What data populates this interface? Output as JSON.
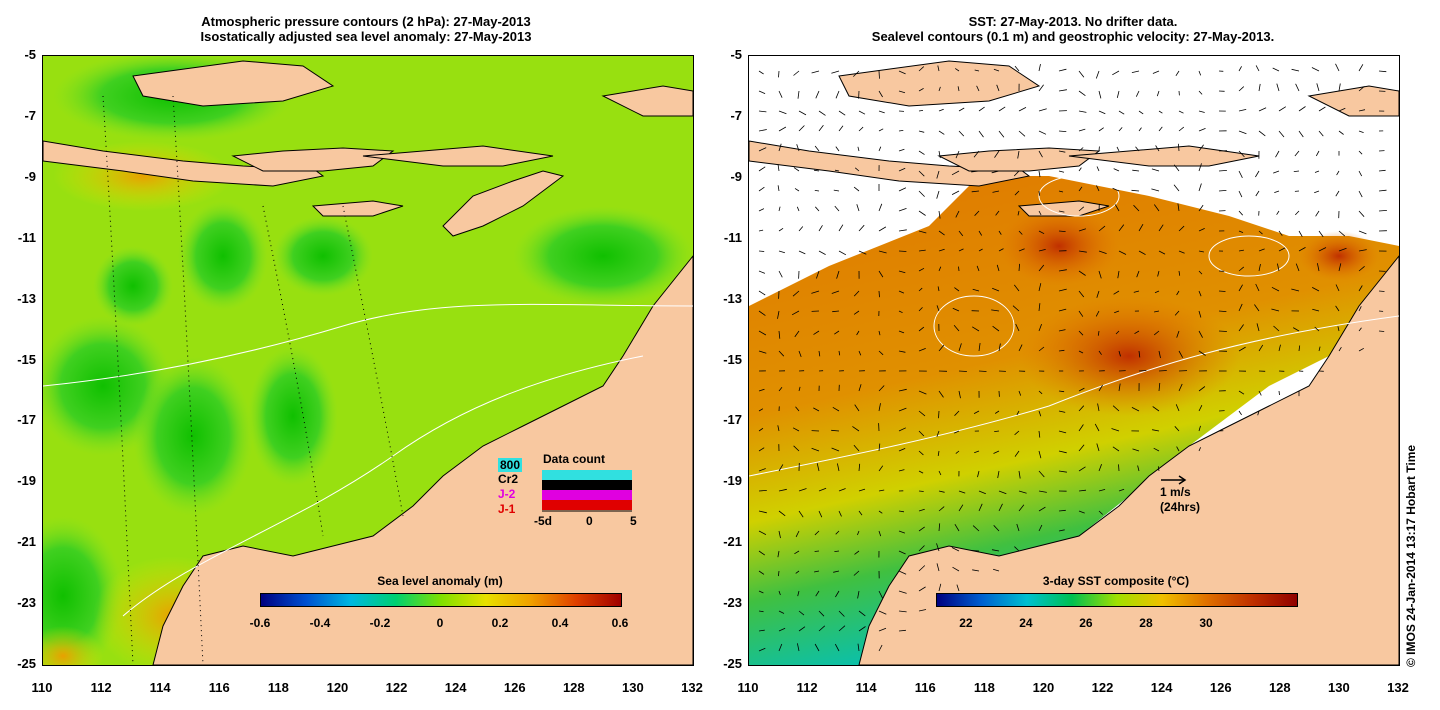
{
  "left_panel": {
    "title_line1": "Atmospheric pressure contours (2 hPa): 27-May-2013",
    "title_line2": "Isostatically adjusted sea level anomaly: 27-May-2013",
    "colorbar_label": "Sea level anomaly (m)",
    "colorbar_ticks": [
      "-0.6",
      "-0.4",
      "-0.2",
      "0",
      "0.2",
      "0.4",
      "0.6"
    ],
    "data_count": {
      "title": "Data count",
      "labels": [
        "800",
        "Cr2",
        "J-2",
        "J-1"
      ],
      "label_colors": [
        "#000000",
        "#000000",
        "#e000e0",
        "#e00000"
      ],
      "axis_labels": [
        "-5d",
        "0",
        "5"
      ]
    }
  },
  "right_panel": {
    "title_line1": "SST: 27-May-2013. No drifter data.",
    "title_line2": "Sealevel contours (0.1 m) and geostrophic velocity: 27-May-2013.",
    "colorbar_label": "3-day SST composite (°C)",
    "colorbar_ticks": [
      "22",
      "24",
      "26",
      "28",
      "30"
    ],
    "scale_label": "1 m/s",
    "scale_sub": "(24hrs)"
  },
  "y_ticks": [
    "-5",
    "-7",
    "-9",
    "-11",
    "-13",
    "-15",
    "-17",
    "-19",
    "-21",
    "-23",
    "-25"
  ],
  "x_ticks": [
    "110",
    "112",
    "114",
    "116",
    "118",
    "120",
    "122",
    "124",
    "126",
    "128",
    "130",
    "132"
  ],
  "copyright": "© IMOS 24-Jan-2014 13:17 Hobart Time",
  "colors": {
    "land": "#f8c8a0",
    "sla_ramp": [
      "#000080",
      "#0050d0",
      "#00b8e0",
      "#00d070",
      "#80e000",
      "#e8e000",
      "#f0a000",
      "#e04000",
      "#a00000"
    ],
    "sst_ramp": [
      "#000080",
      "#0060d0",
      "#00c0d0",
      "#00c050",
      "#a0e000",
      "#f0c000",
      "#e07000",
      "#c03000",
      "#900000"
    ]
  }
}
